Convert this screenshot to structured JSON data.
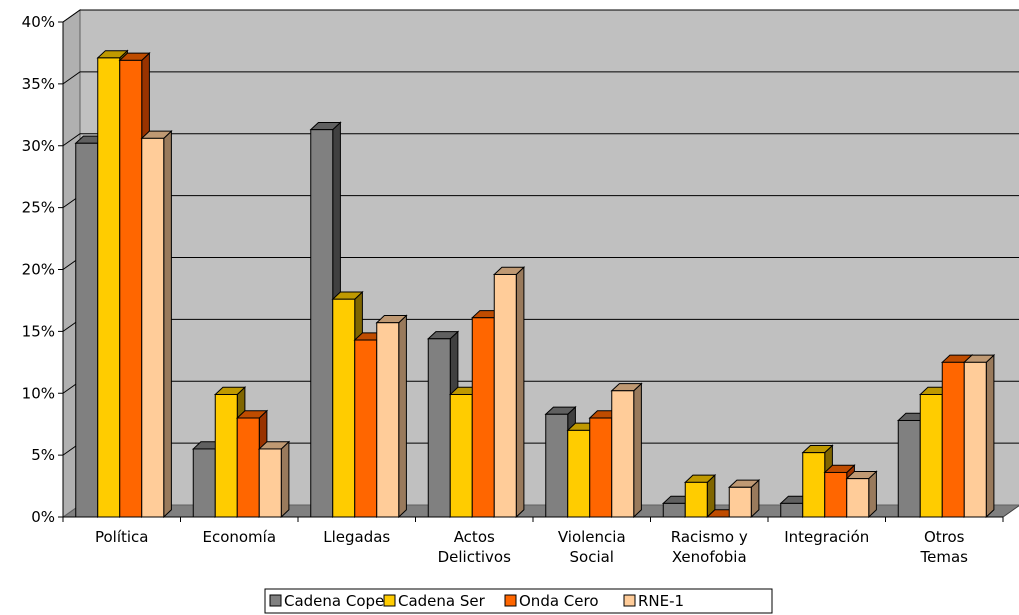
{
  "chart_data": {
    "type": "bar",
    "title": "",
    "xlabel": "",
    "ylabel": "",
    "ylim": [
      0,
      40
    ],
    "yticks": [
      "0%",
      "5%",
      "10%",
      "15%",
      "20%",
      "25%",
      "30%",
      "35%",
      "40%"
    ],
    "categories": [
      [
        "Política"
      ],
      [
        "Economía"
      ],
      [
        "Llegadas"
      ],
      [
        "Actos",
        "Delictivos"
      ],
      [
        "Violencia",
        "Social"
      ],
      [
        "Racismo y",
        "Xenofobia"
      ],
      [
        "Integración"
      ],
      [
        "Otros",
        "Temas"
      ]
    ],
    "series": [
      {
        "name": "Cadena Cope",
        "values": [
          30.2,
          5.5,
          31.3,
          14.4,
          8.3,
          1.1,
          1.1,
          7.8
        ]
      },
      {
        "name": "Cadena Ser",
        "values": [
          37.1,
          9.9,
          17.6,
          9.9,
          7.0,
          2.8,
          5.2,
          9.9
        ]
      },
      {
        "name": "Onda Cero",
        "values": [
          36.9,
          8.0,
          14.3,
          16.1,
          8.0,
          0.0,
          3.6,
          12.5
        ]
      },
      {
        "name": "RNE-1",
        "values": [
          30.6,
          5.5,
          15.7,
          19.6,
          10.2,
          2.4,
          3.1,
          12.5
        ]
      }
    ],
    "colors": [
      "#808080",
      "#FFCC00",
      "#FF6600",
      "#FFCC99"
    ],
    "side_colors": [
      "#404040",
      "#806600",
      "#993300",
      "#997A5C"
    ],
    "top_colors": [
      "#606060",
      "#BF9900",
      "#BF4C00",
      "#BF9973"
    ],
    "grid": true,
    "legend_position": "bottom"
  }
}
